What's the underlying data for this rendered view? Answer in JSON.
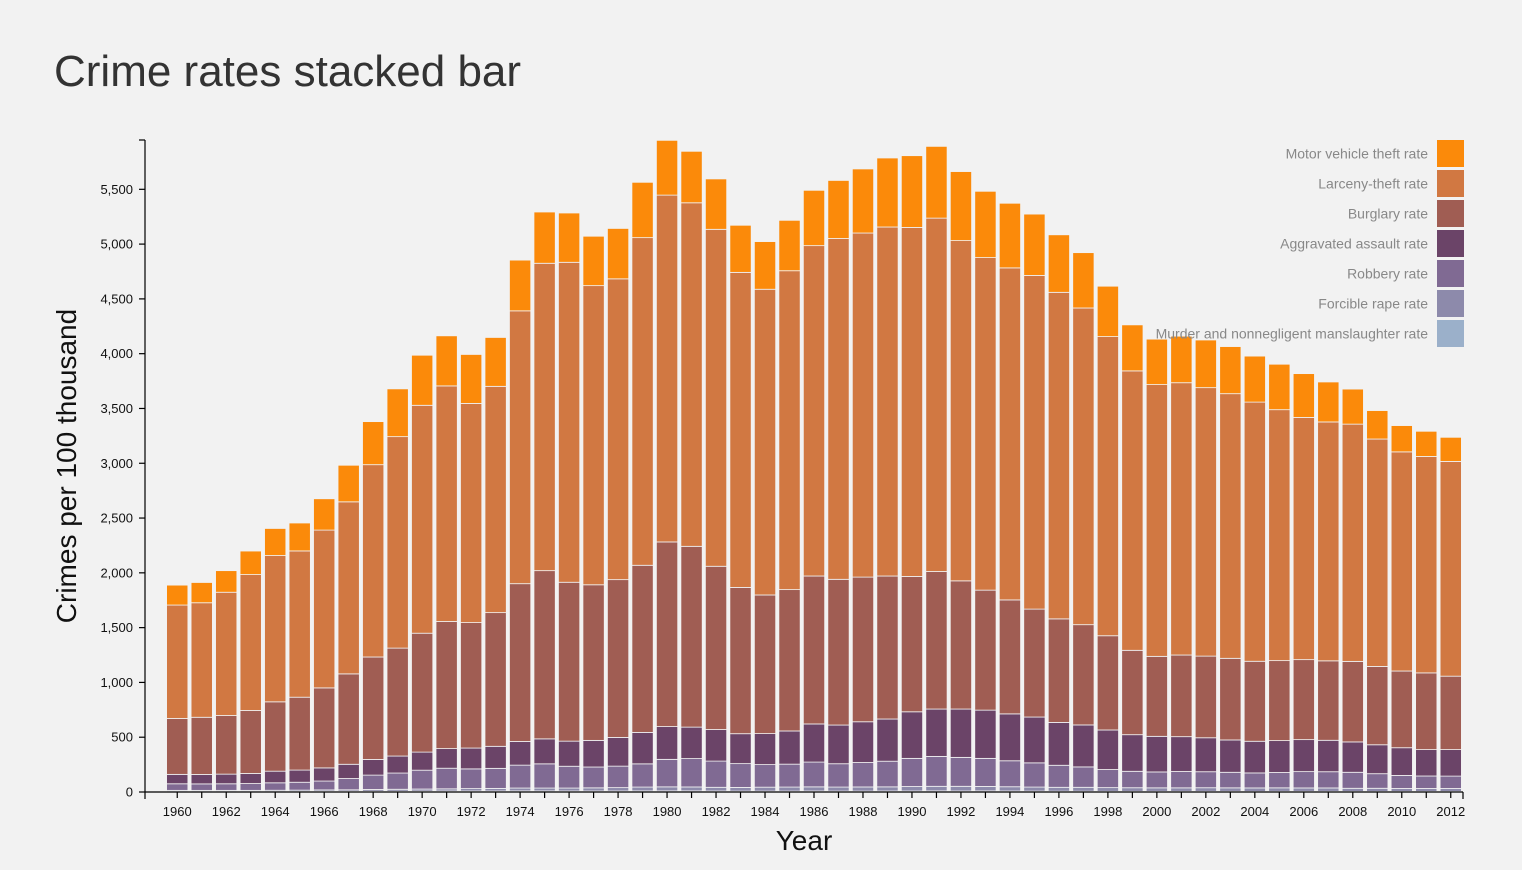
{
  "chart_data": {
    "type": "bar",
    "stacked": true,
    "title": "Crime rates stacked bar",
    "xlabel": "Year",
    "ylabel": "Crimes per 100 thousand",
    "ylim": [
      0,
      5950
    ],
    "yticks": [
      0,
      500,
      1000,
      1500,
      2000,
      2500,
      3000,
      3500,
      4000,
      4500,
      5000,
      5500
    ],
    "ytick_labels": [
      "0",
      "500",
      "1,000",
      "1,500",
      "2,000",
      "2,500",
      "3,000",
      "3,500",
      "4,000",
      "4,500",
      "5,000",
      "5,500"
    ],
    "xtick_labels": [
      "1960",
      "1962",
      "1964",
      "1966",
      "1968",
      "1970",
      "1972",
      "1974",
      "1976",
      "1978",
      "1980",
      "1982",
      "1984",
      "1986",
      "1988",
      "1990",
      "1992",
      "1994",
      "1996",
      "1998",
      "2000",
      "2002",
      "2004",
      "2006",
      "2008",
      "2010",
      "2012"
    ],
    "grid": false,
    "legend_position": "top-right",
    "categories": [
      1960,
      1961,
      1962,
      1963,
      1964,
      1965,
      1966,
      1967,
      1968,
      1969,
      1970,
      1971,
      1972,
      1973,
      1974,
      1975,
      1976,
      1977,
      1978,
      1979,
      1980,
      1981,
      1982,
      1983,
      1984,
      1985,
      1986,
      1987,
      1988,
      1989,
      1990,
      1991,
      1992,
      1993,
      1994,
      1995,
      1996,
      1997,
      1998,
      1999,
      2000,
      2001,
      2002,
      2003,
      2004,
      2005,
      2006,
      2007,
      2008,
      2009,
      2010,
      2011,
      2012
    ],
    "series": [
      {
        "name": "Murder and nonnegligent manslaughter rate",
        "color": "#9bb0ca",
        "values": [
          5,
          5,
          5,
          5,
          5,
          5,
          6,
          6,
          7,
          7,
          8,
          9,
          9,
          9,
          10,
          10,
          9,
          9,
          9,
          10,
          10,
          10,
          9,
          8,
          8,
          8,
          9,
          8,
          8,
          9,
          9,
          10,
          9,
          10,
          9,
          8,
          7,
          7,
          6,
          6,
          6,
          6,
          6,
          6,
          5,
          6,
          6,
          6,
          5,
          5,
          5,
          5,
          5
        ]
      },
      {
        "name": "Forcible rape rate",
        "color": "#8d8aab",
        "values": [
          10,
          10,
          10,
          10,
          11,
          12,
          13,
          14,
          16,
          18,
          19,
          20,
          22,
          24,
          26,
          26,
          27,
          29,
          31,
          35,
          37,
          36,
          34,
          34,
          36,
          37,
          38,
          37,
          38,
          38,
          41,
          42,
          43,
          41,
          39,
          37,
          36,
          36,
          34,
          33,
          32,
          32,
          33,
          32,
          32,
          32,
          31,
          31,
          29,
          29,
          27,
          27,
          27
        ]
      },
      {
        "name": "Robbery rate",
        "color": "#806a93",
        "values": [
          60,
          59,
          60,
          62,
          68,
          72,
          81,
          103,
          131,
          148,
          172,
          188,
          180,
          183,
          209,
          221,
          199,
          190,
          196,
          212,
          251,
          259,
          239,
          217,
          206,
          209,
          226,
          213,
          223,
          234,
          257,
          273,
          264,
          256,
          237,
          221,
          201,
          186,
          165,
          150,
          145,
          149,
          146,
          142,
          137,
          140,
          149,
          148,
          146,
          133,
          119,
          114,
          113
        ]
      },
      {
        "name": "Aggravated assault rate",
        "color": "#6b4468",
        "values": [
          86,
          86,
          88,
          92,
          106,
          111,
          120,
          130,
          143,
          155,
          165,
          179,
          190,
          201,
          216,
          228,
          229,
          243,
          262,
          287,
          299,
          287,
          288,
          273,
          283,
          303,
          348,
          353,
          372,
          385,
          425,
          432,
          441,
          440,
          428,
          418,
          391,
          383,
          361,
          334,
          325,
          318,
          310,
          295,
          289,
          291,
          292,
          287,
          277,
          264,
          253,
          241,
          242
        ]
      },
      {
        "name": "Burglary rate",
        "color": "#a05d53",
        "values": [
          510,
          522,
          535,
          575,
          633,
          665,
          730,
          825,
          935,
          985,
          1085,
          1160,
          1145,
          1220,
          1440,
          1535,
          1450,
          1420,
          1440,
          1525,
          1685,
          1650,
          1490,
          1335,
          1265,
          1290,
          1350,
          1330,
          1320,
          1305,
          1235,
          1255,
          1170,
          1095,
          1040,
          985,
          945,
          915,
          860,
          770,
          730,
          745,
          745,
          745,
          730,
          730,
          730,
          725,
          735,
          715,
          700,
          700,
          670
        ]
      },
      {
        "name": "Larceny-theft rate",
        "color": "#d17842",
        "values": [
          1035,
          1045,
          1125,
          1240,
          1335,
          1335,
          1440,
          1570,
          1755,
          1930,
          2080,
          2150,
          2000,
          2065,
          2490,
          2805,
          2920,
          2730,
          2745,
          2990,
          3165,
          3135,
          3075,
          2875,
          2790,
          2910,
          3015,
          3110,
          3140,
          3185,
          3185,
          3225,
          3105,
          3035,
          3030,
          3045,
          2980,
          2890,
          2730,
          2550,
          2480,
          2485,
          2450,
          2415,
          2365,
          2290,
          2210,
          2180,
          2165,
          2075,
          2000,
          1975,
          1960
        ]
      },
      {
        "name": "Motor vehicle theft rate",
        "color": "#fb8a0a",
        "values": [
          182,
          185,
          197,
          215,
          247,
          255,
          286,
          334,
          393,
          436,
          457,
          457,
          447,
          446,
          463,
          468,
          450,
          451,
          460,
          505,
          500,
          470,
          460,
          430,
          435,
          460,
          505,
          530,
          585,
          630,
          655,
          655,
          630,
          605,
          590,
          560,
          525,
          505,
          460,
          420,
          415,
          425,
          435,
          430,
          420,
          415,
          400,
          365,
          320,
          260,
          240,
          230,
          220
        ]
      }
    ]
  }
}
